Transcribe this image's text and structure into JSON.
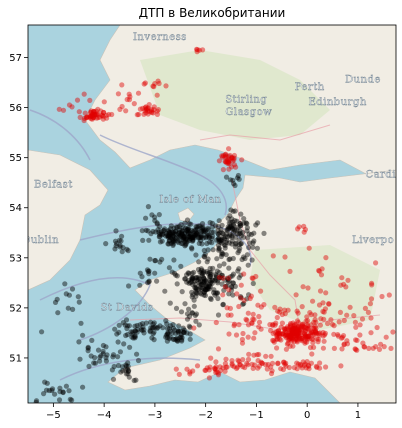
{
  "chart_data": {
    "type": "scatter",
    "title": "ДТП в Великобритании",
    "xlabel": "",
    "ylabel": "",
    "xlim": [
      -5.5,
      1.75
    ],
    "ylim": [
      50.1,
      57.65
    ],
    "xticks": [
      -5,
      -4,
      -3,
      -2,
      -1,
      0,
      1
    ],
    "yticks": [
      51,
      52,
      53,
      54,
      55,
      56,
      57
    ],
    "grid": false,
    "legend": "none",
    "background": "OpenStreetMap tiles",
    "series": [
      {
        "color": "#000000",
        "clusters": [
          {
            "x": -2.6,
            "y": 53.45,
            "sx": 0.25,
            "sy": 0.1,
            "n": 120
          },
          {
            "x": -2.0,
            "y": 53.45,
            "sx": 0.25,
            "sy": 0.12,
            "n": 90
          },
          {
            "x": -1.4,
            "y": 53.55,
            "sx": 0.2,
            "sy": 0.18,
            "n": 70
          },
          {
            "x": -1.7,
            "y": 53.1,
            "sx": 0.35,
            "sy": 0.25,
            "n": 60
          },
          {
            "x": -2.05,
            "y": 52.5,
            "sx": 0.18,
            "sy": 0.15,
            "n": 110
          },
          {
            "x": -1.5,
            "y": 52.4,
            "sx": 0.2,
            "sy": 0.2,
            "n": 40
          },
          {
            "x": -2.9,
            "y": 52.7,
            "sx": 0.25,
            "sy": 0.2,
            "n": 30
          },
          {
            "x": -3.2,
            "y": 51.55,
            "sx": 0.3,
            "sy": 0.12,
            "n": 55
          },
          {
            "x": -2.55,
            "y": 51.45,
            "sx": 0.15,
            "sy": 0.1,
            "n": 40
          },
          {
            "x": -2.3,
            "y": 51.85,
            "sx": 0.3,
            "sy": 0.15,
            "n": 20
          },
          {
            "x": -4.0,
            "y": 51.1,
            "sx": 0.25,
            "sy": 0.15,
            "n": 30
          },
          {
            "x": -3.6,
            "y": 50.75,
            "sx": 0.2,
            "sy": 0.12,
            "n": 20
          },
          {
            "x": -4.9,
            "y": 50.35,
            "sx": 0.25,
            "sy": 0.12,
            "n": 20
          },
          {
            "x": -4.8,
            "y": 52.1,
            "sx": 0.25,
            "sy": 0.3,
            "n": 15
          },
          {
            "x": -3.8,
            "y": 53.25,
            "sx": 0.25,
            "sy": 0.1,
            "n": 15
          },
          {
            "x": -1.4,
            "y": 54.55,
            "sx": 0.1,
            "sy": 0.05,
            "n": 8
          },
          {
            "x": -3.0,
            "y": 53.8,
            "sx": 0.1,
            "sy": 0.1,
            "n": 8
          }
        ]
      },
      {
        "color": "#e10000",
        "clusters": [
          {
            "x": -0.2,
            "y": 51.5,
            "sx": 0.22,
            "sy": 0.1,
            "n": 180
          },
          {
            "x": 0.3,
            "y": 51.6,
            "sx": 0.5,
            "sy": 0.25,
            "n": 70
          },
          {
            "x": -0.9,
            "y": 51.7,
            "sx": 0.5,
            "sy": 0.35,
            "n": 60
          },
          {
            "x": -1.3,
            "y": 50.9,
            "sx": 0.4,
            "sy": 0.1,
            "n": 45
          },
          {
            "x": -0.2,
            "y": 50.85,
            "sx": 0.4,
            "sy": 0.05,
            "n": 35
          },
          {
            "x": -2.0,
            "y": 50.75,
            "sx": 0.3,
            "sy": 0.08,
            "n": 20
          },
          {
            "x": 0.5,
            "y": 52.4,
            "sx": 0.6,
            "sy": 0.4,
            "n": 35
          },
          {
            "x": 1.2,
            "y": 51.3,
            "sx": 0.3,
            "sy": 0.15,
            "n": 15
          },
          {
            "x": -1.4,
            "y": 52.3,
            "sx": 0.3,
            "sy": 0.3,
            "n": 15
          },
          {
            "x": -4.15,
            "y": 55.85,
            "sx": 0.15,
            "sy": 0.05,
            "n": 45
          },
          {
            "x": -3.15,
            "y": 55.95,
            "sx": 0.12,
            "sy": 0.05,
            "n": 25
          },
          {
            "x": -3.6,
            "y": 56.15,
            "sx": 0.3,
            "sy": 0.15,
            "n": 15
          },
          {
            "x": -4.6,
            "y": 55.95,
            "sx": 0.2,
            "sy": 0.15,
            "n": 10
          },
          {
            "x": -2.95,
            "y": 56.5,
            "sx": 0.15,
            "sy": 0.05,
            "n": 8
          },
          {
            "x": -2.1,
            "y": 57.15,
            "sx": 0.05,
            "sy": 0.02,
            "n": 5
          },
          {
            "x": -1.55,
            "y": 54.95,
            "sx": 0.1,
            "sy": 0.1,
            "n": 35
          },
          {
            "x": -0.1,
            "y": 53.6,
            "sx": 0.1,
            "sy": 0.05,
            "n": 5
          }
        ]
      }
    ]
  },
  "map": {
    "water_color": "#aad3df",
    "land_color": "#f2efe9",
    "place_labels": [
      {
        "text": "Inverness",
        "x": -2.9,
        "y": 57.35
      },
      {
        "text": "Perth",
        "x": 0.05,
        "y": 56.35
      },
      {
        "text": "Dunde",
        "x": 1.1,
        "y": 56.5
      },
      {
        "text": "Stirling",
        "x": -1.2,
        "y": 56.1
      },
      {
        "text": "Edinburgh",
        "x": 0.6,
        "y": 56.05
      },
      {
        "text": "Glasgow",
        "x": -1.15,
        "y": 55.85
      },
      {
        "text": "Belfast",
        "x": -5.0,
        "y": 54.4
      },
      {
        "text": "Isle of Man",
        "x": -2.3,
        "y": 54.1
      },
      {
        "text": "Liverpo",
        "x": 1.3,
        "y": 53.3
      },
      {
        "text": "St Davids",
        "x": -3.55,
        "y": 51.95
      },
      {
        "text": "Dublin",
        "x": -5.25,
        "y": 53.3
      },
      {
        "text": "Cardi",
        "x": 1.45,
        "y": 54.6
      }
    ]
  }
}
